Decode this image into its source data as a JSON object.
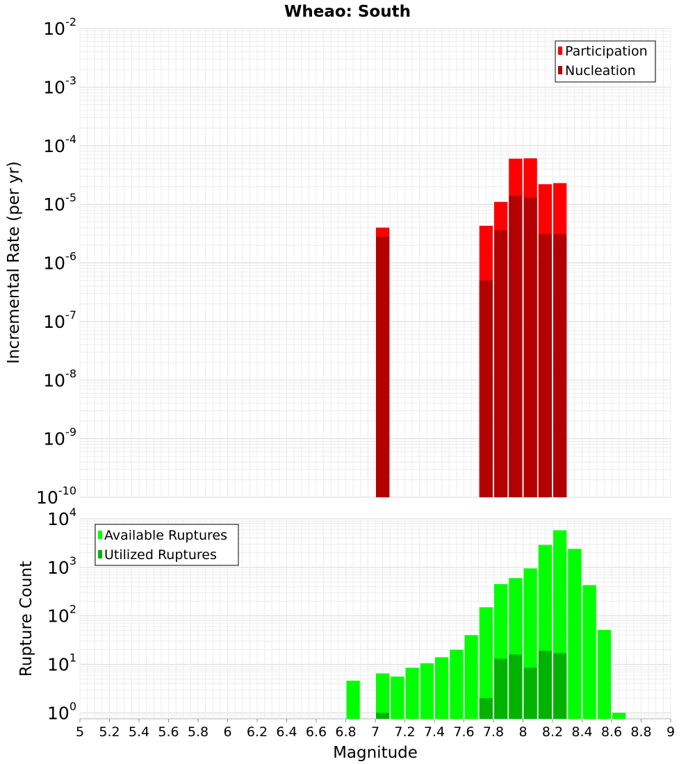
{
  "chart_data": [
    {
      "type": "bar",
      "title": "Wheao: South",
      "xlabel": "",
      "ylabel": "Incremental Rate (per yr)",
      "yscale": "log",
      "ylim": [
        1e-10,
        0.01
      ],
      "xlim": [
        5,
        9
      ],
      "bin_width": 0.1,
      "grid": true,
      "legend_position": "top-right",
      "y_ticks": [
        "10^-10",
        "10^-9",
        "10^-8",
        "10^-7",
        "10^-6",
        "10^-5",
        "10^-4",
        "10^-3",
        "10^-2"
      ],
      "series": [
        {
          "name": "Participation",
          "color": "#ff0000",
          "x": [
            7.05,
            7.75,
            7.85,
            7.95,
            8.05,
            8.15,
            8.25
          ],
          "values": [
            4e-06,
            4.3e-06,
            1.1e-05,
            6e-05,
            6.1e-05,
            2.2e-05,
            2.3e-05
          ]
        },
        {
          "name": "Nucleation",
          "color": "#b30000",
          "x": [
            7.05,
            7.75,
            7.85,
            7.95,
            8.05,
            8.15,
            8.25
          ],
          "values": [
            2.8e-06,
            5e-07,
            3.6e-06,
            1.4e-05,
            1.3e-05,
            3.1e-06,
            3.1e-06
          ]
        }
      ]
    },
    {
      "type": "bar",
      "title": "",
      "xlabel": "Magnitude",
      "ylabel": "Rupture Count",
      "yscale": "log",
      "ylim": [
        0.75,
        10000
      ],
      "xlim": [
        5,
        9
      ],
      "bin_width": 0.1,
      "grid": true,
      "legend_position": "top-left",
      "y_ticks": [
        "10^0",
        "10^1",
        "10^2",
        "10^3",
        "10^4"
      ],
      "x_ticks": [
        "5",
        "5.2",
        "5.4",
        "5.6",
        "5.8",
        "6",
        "6.2",
        "6.4",
        "6.6",
        "6.8",
        "7",
        "7.2",
        "7.4",
        "7.6",
        "7.8",
        "8",
        "8.2",
        "8.4",
        "8.6",
        "8.8",
        "9"
      ],
      "series": [
        {
          "name": "Available Ruptures",
          "color": "#00ff00",
          "x": [
            6.85,
            7.05,
            7.15,
            7.25,
            7.35,
            7.45,
            7.55,
            7.65,
            7.75,
            7.85,
            7.95,
            8.05,
            8.15,
            8.25,
            8.35,
            8.45,
            8.55,
            8.65
          ],
          "values": [
            4.6,
            6.5,
            5.6,
            8.5,
            10.5,
            14,
            20,
            40,
            150,
            450,
            600,
            950,
            2900,
            5800,
            2400,
            430,
            51,
            1
          ]
        },
        {
          "name": "Utilized Ruptures",
          "color": "#00b300",
          "x": [
            7.05,
            7.75,
            7.85,
            7.95,
            8.05,
            8.15,
            8.25
          ],
          "values": [
            1,
            2,
            13,
            16,
            8.5,
            19,
            17
          ]
        }
      ]
    }
  ]
}
